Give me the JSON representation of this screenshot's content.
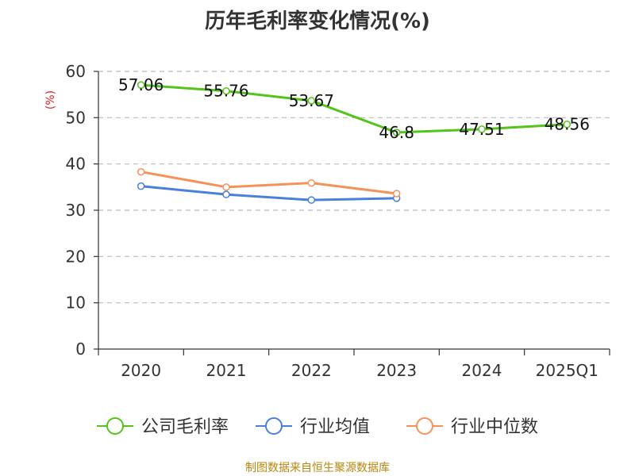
{
  "chart_data": {
    "type": "line",
    "title": "历年毛利率变化情况(%)",
    "xlabel": "",
    "ylabel": "(%)",
    "categories": [
      "2020",
      "2021",
      "2022",
      "2023",
      "2024",
      "2025Q1"
    ],
    "ylim": [
      0,
      60
    ],
    "yticks": [
      0,
      10,
      20,
      30,
      40,
      50,
      60
    ],
    "grid": true,
    "legend_position": "bottom",
    "series": [
      {
        "name": "公司毛利率",
        "color": "#52c41a",
        "labels": true,
        "values": [
          57.06,
          55.76,
          53.67,
          46.8,
          47.51,
          48.56
        ]
      },
      {
        "name": "行业均值",
        "color": "#4a7fdc",
        "labels": false,
        "values": [
          35.2,
          33.4,
          32.2,
          32.6,
          null,
          null
        ]
      },
      {
        "name": "行业中位数",
        "color": "#f5925a",
        "labels": false,
        "values": [
          38.3,
          35.0,
          35.9,
          33.6,
          null,
          null
        ]
      }
    ],
    "data_labels": [
      "57.06",
      "55.76",
      "53.67",
      "46.8",
      "47.51",
      "48.56"
    ]
  },
  "source": "制图数据来自恒生聚源数据库"
}
